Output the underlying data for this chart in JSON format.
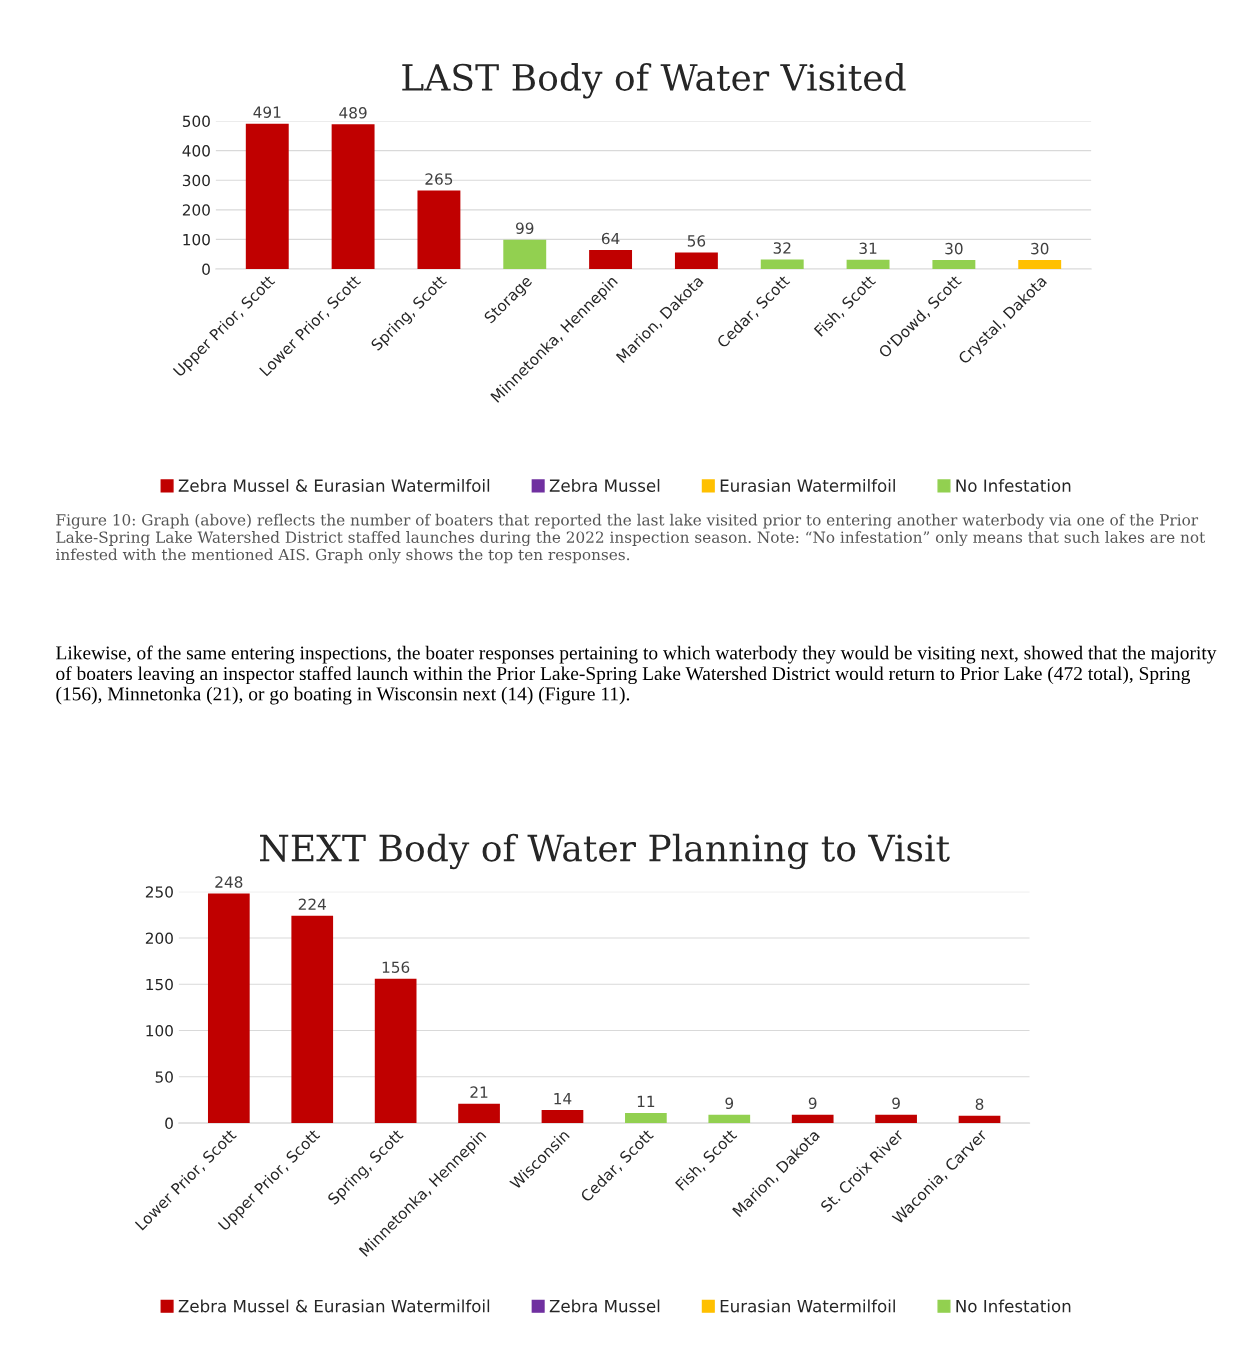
{
  "chart_data": [
    {
      "type": "bar",
      "title": "LAST Body of Water Visited",
      "categories": [
        "Upper Prior, Scott",
        "Lower Prior, Scott",
        "Spring, Scott",
        "Storage",
        "Minnetonka, Hennepin",
        "Marion, Dakota",
        "Cedar, Scott",
        "Fish, Scott",
        "O'Dowd, Scott",
        "Crystal, Dakota"
      ],
      "series": [
        {
          "name": "Zebra Mussel & Eurasian Watermilfoil",
          "color": "#c00000",
          "values": [
            491,
            489,
            265,
            null,
            64,
            56,
            null,
            null,
            null,
            null
          ]
        },
        {
          "name": "Zebra Mussel",
          "color": "#7030a0",
          "values": [
            null,
            null,
            null,
            null,
            null,
            null,
            null,
            null,
            null,
            null
          ]
        },
        {
          "name": "Eurasian Watermilfoil",
          "color": "#ffc000",
          "values": [
            null,
            null,
            null,
            null,
            null,
            null,
            null,
            null,
            null,
            30
          ]
        },
        {
          "name": "No Infestation",
          "color": "#92d050",
          "values": [
            null,
            null,
            null,
            99,
            null,
            null,
            32,
            31,
            30,
            null
          ]
        }
      ],
      "stacked": true,
      "ylim": [
        0,
        500
      ],
      "yticks": [
        0,
        100,
        200,
        300,
        400,
        500
      ],
      "grid": "y",
      "legend": "bottom",
      "data_labels": true,
      "annotations": [
        "Figure 10: Graph (above) reflects the number of boaters that reported the last lake visited prior to entering another waterbody via one of the Prior Lake-Spring Lake Watershed District staffed launches during the 2022 inspection season. Note: “No infestation” only means that such lakes are not infested with the mentioned AIS. Graph only shows the top ten responses.",
        "Likewise, of the same entering inspections, the boater responses pertaining to which waterbody they would be visiting next, showed that the majority of boaters leaving an inspector staffed launch within the Prior Lake-Spring Lake Watershed District would return to Prior Lake (472 total), Spring (156), Minnetonka (21), or go boating in Wisconsin next (14) (Figure 11)."
      ]
    },
    {
      "type": "bar",
      "title": "NEXT Body of Water Planning to Visit",
      "categories": [
        "Lower Prior, Scott",
        "Upper Prior, Scott",
        "Spring, Scott",
        "Minnetonka, Hennepin",
        "Wisconsin",
        "Cedar, Scott",
        "Fish, Scott",
        "Marion, Dakota",
        "St. Croix River",
        "Waconia, Carver"
      ],
      "series": [
        {
          "name": "Zebra Mussel & Eurasian Watermilfoil",
          "color": "#c00000",
          "values": [
            248,
            224,
            156,
            21,
            14,
            null,
            null,
            9,
            9,
            8
          ]
        },
        {
          "name": "Zebra Mussel",
          "color": "#7030a0",
          "values": [
            null,
            null,
            null,
            null,
            null,
            null,
            null,
            null,
            null,
            null
          ]
        },
        {
          "name": "Eurasian Watermilfoil",
          "color": "#ffc000",
          "values": [
            null,
            null,
            null,
            null,
            null,
            null,
            null,
            null,
            null,
            null
          ]
        },
        {
          "name": "No Infestation",
          "color": "#92d050",
          "values": [
            null,
            null,
            null,
            null,
            null,
            11,
            9,
            null,
            null,
            null
          ]
        }
      ],
      "stacked": true,
      "ylim": [
        0,
        250
      ],
      "yticks": [
        0,
        50,
        100,
        150,
        200,
        250
      ],
      "grid": "y",
      "legend": "bottom",
      "data_labels": true
    }
  ]
}
